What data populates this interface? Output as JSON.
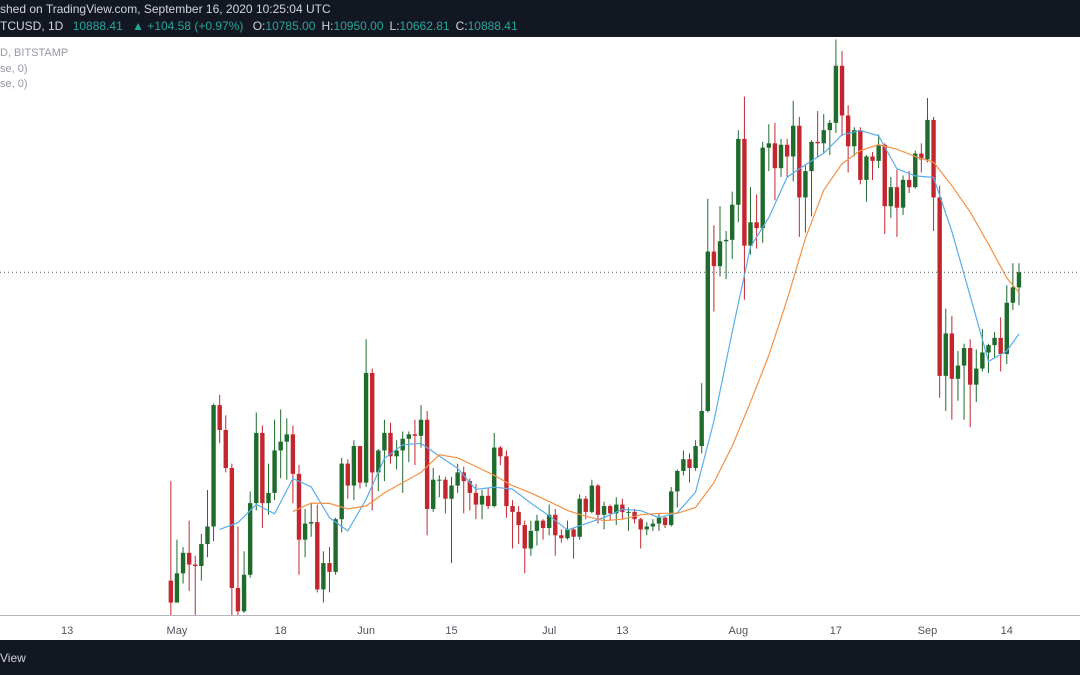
{
  "header": {
    "published": "shed on TradingView.com, September 16, 2020 10:25:04 UTC",
    "symbol": "TCUSD, 1D",
    "price": "10888.41",
    "change": "▲ +104.58 (+0.97%)",
    "ohlc": [
      {
        "key": "O:",
        "text": "10785.00"
      },
      {
        "key": "H:",
        "text": "10950.00"
      },
      {
        "key": "L:",
        "text": "10662.81"
      },
      {
        "key": "C:",
        "text": "10888.41"
      }
    ]
  },
  "footer": {
    "brand": "View"
  },
  "chart_data": {
    "type": "candlestick",
    "subtitle": "D, BITSTAMP",
    "up_color": "#1e6b2c",
    "down_color": "#c3262f",
    "x": [
      "2020-04-30",
      "2020-05-01",
      "2020-05-02",
      "2020-05-03",
      "2020-05-04",
      "2020-05-05",
      "2020-05-06",
      "2020-05-07",
      "2020-05-08",
      "2020-05-09",
      "2020-05-10",
      "2020-05-11",
      "2020-05-12",
      "2020-05-13",
      "2020-05-14",
      "2020-05-15",
      "2020-05-16",
      "2020-05-17",
      "2020-05-18",
      "2020-05-19",
      "2020-05-20",
      "2020-05-21",
      "2020-05-22",
      "2020-05-23",
      "2020-05-24",
      "2020-05-25",
      "2020-05-26",
      "2020-05-27",
      "2020-05-28",
      "2020-05-29",
      "2020-05-30",
      "2020-05-31",
      "2020-06-01",
      "2020-06-02",
      "2020-06-03",
      "2020-06-04",
      "2020-06-05",
      "2020-06-06",
      "2020-06-07",
      "2020-06-08",
      "2020-06-09",
      "2020-06-10",
      "2020-06-11",
      "2020-06-12",
      "2020-06-13",
      "2020-06-14",
      "2020-06-15",
      "2020-06-16",
      "2020-06-17",
      "2020-06-18",
      "2020-06-19",
      "2020-06-20",
      "2020-06-21",
      "2020-06-22",
      "2020-06-23",
      "2020-06-24",
      "2020-06-25",
      "2020-06-26",
      "2020-06-27",
      "2020-06-28",
      "2020-06-29",
      "2020-06-30",
      "2020-07-01",
      "2020-07-02",
      "2020-07-03",
      "2020-07-04",
      "2020-07-05",
      "2020-07-06",
      "2020-07-07",
      "2020-07-08",
      "2020-07-09",
      "2020-07-10",
      "2020-07-11",
      "2020-07-12",
      "2020-07-13",
      "2020-07-14",
      "2020-07-15",
      "2020-07-16",
      "2020-07-17",
      "2020-07-18",
      "2020-07-19",
      "2020-07-20",
      "2020-07-21",
      "2020-07-22",
      "2020-07-23",
      "2020-07-24",
      "2020-07-25",
      "2020-07-26",
      "2020-07-27",
      "2020-07-28",
      "2020-07-29",
      "2020-07-30",
      "2020-07-31",
      "2020-08-01",
      "2020-08-02",
      "2020-08-03",
      "2020-08-04",
      "2020-08-05",
      "2020-08-06",
      "2020-08-07",
      "2020-08-08",
      "2020-08-09",
      "2020-08-10",
      "2020-08-11",
      "2020-08-12",
      "2020-08-13",
      "2020-08-14",
      "2020-08-15",
      "2020-08-16",
      "2020-08-17",
      "2020-08-18",
      "2020-08-19",
      "2020-08-20",
      "2020-08-21",
      "2020-08-22",
      "2020-08-23",
      "2020-08-24",
      "2020-08-25",
      "2020-08-26",
      "2020-08-27",
      "2020-08-28",
      "2020-08-29",
      "2020-08-30",
      "2020-08-31",
      "2020-09-01",
      "2020-09-02",
      "2020-09-03",
      "2020-09-04",
      "2020-09-05",
      "2020-09-06",
      "2020-09-07",
      "2020-09-08",
      "2020-09-09",
      "2020-09-10",
      "2020-09-11",
      "2020-09-12",
      "2020-09-13",
      "2020-09-14",
      "2020-09-15",
      "2020-09-16"
    ],
    "open": [
      8780,
      8630,
      8830,
      8970,
      8890,
      8880,
      9030,
      9150,
      9980,
      9810,
      9550,
      8730,
      8570,
      8820,
      9310,
      9790,
      9310,
      9380,
      9670,
      9730,
      9780,
      9510,
      9060,
      9170,
      9180,
      8720,
      8900,
      8840,
      9200,
      9580,
      9430,
      9700,
      9450,
      10200,
      9520,
      9670,
      9790,
      9630,
      9670,
      9750,
      9780,
      9770,
      9880,
      9270,
      9470,
      9470,
      9340,
      9430,
      9520,
      9460,
      9380,
      9300,
      9360,
      9290,
      9690,
      9630,
      9290,
      9250,
      9160,
      9000,
      9120,
      9190,
      9140,
      9230,
      9090,
      9070,
      9130,
      9080,
      9340,
      9250,
      9430,
      9230,
      9290,
      9240,
      9300,
      9250,
      9250,
      9200,
      9130,
      9150,
      9170,
      9210,
      9160,
      9390,
      9530,
      9610,
      9550,
      9700,
      9940,
      11030,
      10930,
      11100,
      11110,
      11350,
      11800,
      11070,
      11230,
      11190,
      11740,
      11770,
      11600,
      11760,
      11680,
      11890,
      11400,
      11580,
      11780,
      11770,
      11860,
      11910,
      12300,
      11960,
      11750,
      11860,
      11520,
      11680,
      11650,
      11760,
      11340,
      11470,
      11330,
      11520,
      11470,
      11700,
      11660,
      11930,
      11400,
      10180,
      10470,
      10160,
      10250,
      10370,
      10120,
      10230,
      10340,
      10390,
      10440,
      10330,
      10680,
      10785
    ],
    "high": [
      9460,
      9060,
      9010,
      9190,
      8950,
      9100,
      9400,
      9990,
      10050,
      9910,
      9580,
      9150,
      8980,
      9390,
      9930,
      9840,
      9580,
      9880,
      9950,
      9890,
      9840,
      9570,
      9270,
      9310,
      9300,
      8980,
      9010,
      9210,
      9620,
      9610,
      9740,
      9700,
      10430,
      10230,
      9680,
      9880,
      9860,
      9740,
      9800,
      9800,
      9880,
      9980,
      9940,
      9550,
      9500,
      9490,
      9490,
      9580,
      9560,
      9480,
      9440,
      9400,
      9410,
      9790,
      9700,
      9670,
      9330,
      9290,
      9190,
      9190,
      9230,
      9200,
      9300,
      9270,
      9130,
      9190,
      9140,
      9370,
      9360,
      9470,
      9440,
      9320,
      9300,
      9350,
      9340,
      9280,
      9270,
      9210,
      9180,
      9200,
      9240,
      9220,
      9420,
      9540,
      9670,
      9650,
      9740,
      10130,
      11390,
      11210,
      11340,
      11170,
      11440,
      11860,
      12090,
      11470,
      11420,
      11780,
      11900,
      11910,
      11800,
      11800,
      12060,
      11950,
      11620,
      11790,
      11990,
      11970,
      11930,
      12480,
      12400,
      12030,
      11880,
      11880,
      11690,
      11710,
      11830,
      11770,
      11540,
      11590,
      11550,
      11580,
      11720,
      11770,
      12080,
      11950,
      11480,
      10640,
      10590,
      10350,
      10400,
      10430,
      10360,
      10500,
      10400,
      10480,
      10580,
      10800,
      10950,
      10950
    ],
    "low": [
      8420,
      8630,
      8760,
      8710,
      8530,
      8780,
      8940,
      9050,
      9720,
      9520,
      8130,
      8210,
      8560,
      8800,
      9260,
      9140,
      9230,
      9330,
      9480,
      9470,
      9310,
      8820,
      8940,
      9080,
      8700,
      8630,
      8700,
      8820,
      9110,
      9340,
      9330,
      9410,
      9420,
      9260,
      9390,
      9460,
      9580,
      9540,
      9380,
      9590,
      9570,
      9690,
      9090,
      9250,
      9350,
      9240,
      8900,
      9380,
      9240,
      9260,
      9200,
      9200,
      9270,
      9280,
      9570,
      9210,
      9000,
      9030,
      8830,
      8950,
      9020,
      9060,
      9090,
      8950,
      9040,
      9060,
      8930,
      9060,
      9200,
      9240,
      9170,
      9130,
      9190,
      9160,
      9200,
      9120,
      9170,
      9000,
      9090,
      9120,
      9120,
      9140,
      9150,
      9280,
      9500,
      9450,
      9530,
      9650,
      9930,
      10620,
      10860,
      10840,
      10980,
      11230,
      10700,
      11010,
      11050,
      11090,
      11580,
      11380,
      11540,
      11530,
      11510,
      11130,
      11160,
      11270,
      11670,
      11700,
      11690,
      11840,
      11820,
      11570,
      11680,
      11490,
      11370,
      11520,
      11600,
      11150,
      11260,
      11130,
      11280,
      11430,
      11460,
      11570,
      11640,
      11170,
      10030,
      9940,
      9880,
      10010,
      9880,
      9830,
      10000,
      10210,
      10200,
      10300,
      10210,
      10260,
      10630,
      10662.81
    ],
    "close": [
      8630,
      8830,
      8970,
      8890,
      8880,
      9030,
      9150,
      9980,
      9810,
      9550,
      8730,
      8570,
      8820,
      9310,
      9790,
      9310,
      9380,
      9670,
      9730,
      9780,
      9510,
      9060,
      9170,
      9180,
      8720,
      8900,
      8840,
      9200,
      9580,
      9430,
      9700,
      9450,
      10200,
      9520,
      9670,
      9790,
      9630,
      9670,
      9750,
      9780,
      9770,
      9880,
      9270,
      9470,
      9470,
      9340,
      9430,
      9520,
      9460,
      9380,
      9300,
      9360,
      9290,
      9690,
      9630,
      9290,
      9250,
      9160,
      9000,
      9120,
      9190,
      9140,
      9230,
      9090,
      9070,
      9130,
      9080,
      9340,
      9250,
      9430,
      9230,
      9290,
      9240,
      9300,
      9250,
      9250,
      9200,
      9130,
      9150,
      9170,
      9210,
      9160,
      9390,
      9530,
      9610,
      9550,
      9700,
      9940,
      11030,
      10930,
      11100,
      11110,
      11350,
      11800,
      11070,
      11230,
      11190,
      11740,
      11770,
      11600,
      11760,
      11680,
      11890,
      11400,
      11580,
      11780,
      11770,
      11860,
      11910,
      12300,
      11960,
      11750,
      11860,
      11520,
      11680,
      11650,
      11760,
      11340,
      11470,
      11330,
      11520,
      11470,
      11700,
      11660,
      11930,
      11400,
      10180,
      10470,
      10160,
      10250,
      10370,
      10120,
      10230,
      10340,
      10390,
      10440,
      10330,
      10680,
      10785,
      10888.41
    ],
    "series": [
      {
        "name": "se, 0)",
        "color": "#5aaee8",
        "x": [
          "2020-05-08",
          "2020-05-11",
          "2020-05-14",
          "2020-05-17",
          "2020-05-20",
          "2020-05-23",
          "2020-05-26",
          "2020-05-29",
          "2020-06-01",
          "2020-06-04",
          "2020-06-07",
          "2020-06-10",
          "2020-06-13",
          "2020-06-16",
          "2020-06-19",
          "2020-06-22",
          "2020-06-25",
          "2020-06-28",
          "2020-07-01",
          "2020-07-04",
          "2020-07-07",
          "2020-07-10",
          "2020-07-13",
          "2020-07-16",
          "2020-07-19",
          "2020-07-22",
          "2020-07-25",
          "2020-07-28",
          "2020-07-31",
          "2020-08-03",
          "2020-08-06",
          "2020-08-09",
          "2020-08-12",
          "2020-08-15",
          "2020-08-18",
          "2020-08-21",
          "2020-08-24",
          "2020-08-27",
          "2020-08-30",
          "2020-09-02",
          "2020-09-05",
          "2020-09-08",
          "2020-09-11",
          "2020-09-14",
          "2020-09-16"
        ],
        "values": [
          9130,
          9177,
          9301,
          9237,
          9478,
          9421,
          9210,
          9120,
          9336,
          9616,
          9709,
          9718,
          9632,
          9548,
          9404,
          9419,
          9406,
          9310,
          9223,
          9126,
          9169,
          9212,
          9268,
          9258,
          9211,
          9243,
          9386,
          9871,
          10480,
          11062,
          11262,
          11538,
          11623,
          11702,
          11828,
          11857,
          11821,
          11596,
          11547,
          11536,
          11166,
          10727,
          10279,
          10350,
          10467
        ]
      },
      {
        "name": "se, 0)",
        "color": "#f39143",
        "x": [
          "2020-05-20",
          "2020-05-23",
          "2020-05-26",
          "2020-05-29",
          "2020-06-01",
          "2020-06-04",
          "2020-06-07",
          "2020-06-10",
          "2020-06-13",
          "2020-06-16",
          "2020-06-19",
          "2020-06-22",
          "2020-06-25",
          "2020-06-28",
          "2020-07-01",
          "2020-07-04",
          "2020-07-07",
          "2020-07-10",
          "2020-07-13",
          "2020-07-16",
          "2020-07-19",
          "2020-07-22",
          "2020-07-25",
          "2020-07-28",
          "2020-07-31",
          "2020-08-03",
          "2020-08-06",
          "2020-08-09",
          "2020-08-12",
          "2020-08-15",
          "2020-08-18",
          "2020-08-21",
          "2020-08-24",
          "2020-08-27",
          "2020-08-30",
          "2020-09-02",
          "2020-09-05",
          "2020-09-08",
          "2020-09-11",
          "2020-09-14",
          "2020-09-16"
        ],
        "values": [
          9253,
          9310,
          9308,
          9270,
          9290,
          9380,
          9450,
          9520,
          9640,
          9620,
          9560,
          9500,
          9430,
          9380,
          9320,
          9260,
          9220,
          9190,
          9200,
          9230,
          9240,
          9240,
          9280,
          9450,
          9700,
          10000,
          10320,
          10700,
          11120,
          11450,
          11630,
          11720,
          11760,
          11730,
          11680,
          11640,
          11480,
          11300,
          11080,
          10850,
          10750
        ]
      }
    ],
    "xlim": [
      "2020-04-02",
      "2020-09-26"
    ],
    "ylim": [
      8545,
      12490
    ],
    "xticks": [
      {
        "value": "2020-04-13",
        "label": "13"
      },
      {
        "value": "2020-05-01",
        "label": "May"
      },
      {
        "value": "2020-05-18",
        "label": "18"
      },
      {
        "value": "2020-06-01",
        "label": "Jun"
      },
      {
        "value": "2020-06-15",
        "label": "15"
      },
      {
        "value": "2020-07-01",
        "label": "Jul"
      },
      {
        "value": "2020-07-13",
        "label": "13"
      },
      {
        "value": "2020-08-01",
        "label": "Aug"
      },
      {
        "value": "2020-08-17",
        "label": "17"
      },
      {
        "value": "2020-09-01",
        "label": "Sep"
      },
      {
        "value": "2020-09-14",
        "label": "14"
      }
    ]
  }
}
